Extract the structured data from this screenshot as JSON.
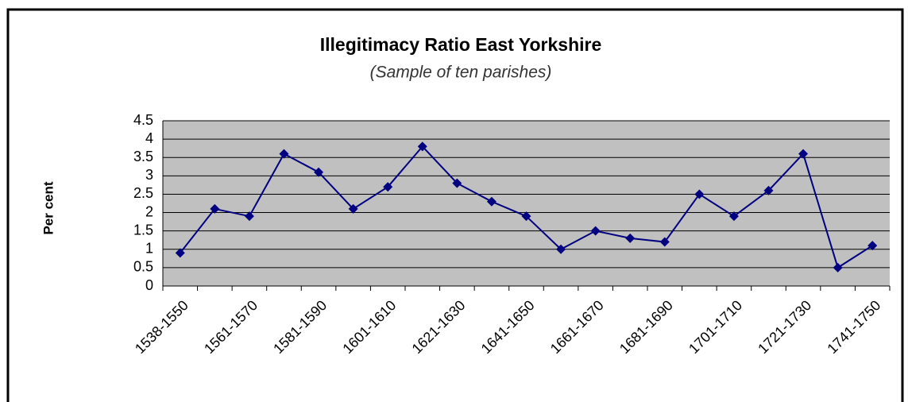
{
  "chart_data": {
    "type": "line",
    "title": "Illegitimacy  Ratio East Yorkshire",
    "subtitle": "(Sample of ten parishes)",
    "y_label": "Per cent",
    "categories": [
      "1538-1550",
      null,
      "1561-1570",
      null,
      "1581-1590",
      null,
      "1601-1610",
      null,
      "1621-1630",
      null,
      "1641-1650",
      null,
      "1661-1670",
      null,
      "1681-1690",
      null,
      "1701-1710",
      null,
      "1721-1730",
      null,
      "1741-1750"
    ],
    "values": [
      0.9,
      2.1,
      1.9,
      3.6,
      3.1,
      2.1,
      2.7,
      3.8,
      2.8,
      2.3,
      1.9,
      1.0,
      1.5,
      1.3,
      1.2,
      2.5,
      1.9,
      2.6,
      3.6,
      0.5,
      1.1
    ],
    "color": "#000080",
    "ylim": [
      0,
      4.5
    ],
    "yticks": [
      0,
      0.5,
      1,
      1.5,
      2,
      2.5,
      3,
      3.5,
      4,
      4.5
    ],
    "grid": true
  }
}
